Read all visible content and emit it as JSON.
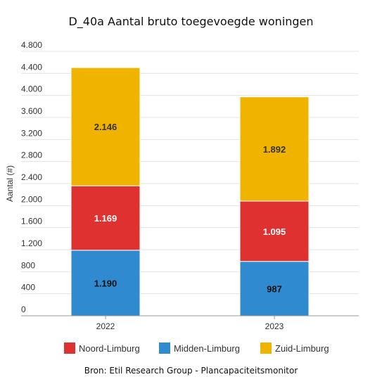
{
  "chart_data": {
    "type": "bar",
    "stacked": true,
    "title": "D_40a Aantal bruto toegevoegde woningen",
    "source": "Bron: Etil Research Group - Plancapaciteitsmonitor",
    "xlabel": "",
    "ylabel": "Aantal (#)",
    "categories": [
      "2022",
      "2023"
    ],
    "ylim": [
      0,
      4800
    ],
    "yticks": [
      0,
      400,
      800,
      1200,
      1600,
      2000,
      2400,
      2800,
      3200,
      3600,
      4000,
      4400,
      4800
    ],
    "ytick_labels": [
      "0",
      "400",
      "800",
      "1.200",
      "1.600",
      "2.000",
      "2.400",
      "2.800",
      "3.200",
      "3.600",
      "4.000",
      "4.400",
      "4.800"
    ],
    "grid": true,
    "legend_position": "bottom",
    "series": [
      {
        "name": "Midden-Limburg",
        "color": "#2f8ad0",
        "label_color": "#111111",
        "values": [
          1190,
          987
        ],
        "labels": [
          "1.190",
          "987"
        ]
      },
      {
        "name": "Noord-Limburg",
        "color": "#e03131",
        "label_color": "#ffffff",
        "values": [
          1169,
          1095
        ],
        "labels": [
          "1.169",
          "1.095"
        ]
      },
      {
        "name": "Zuid-Limburg",
        "color": "#f0b400",
        "label_color": "#333333",
        "values": [
          2146,
          1892
        ],
        "labels": [
          "2.146",
          "1.892"
        ]
      }
    ],
    "legend_order": [
      "Noord-Limburg",
      "Midden-Limburg",
      "Zuid-Limburg"
    ]
  }
}
